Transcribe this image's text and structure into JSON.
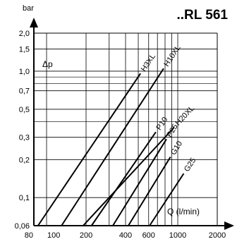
{
  "chart_data": {
    "type": "line",
    "title": "..RL 561",
    "y_unit": "bar",
    "ylabel": "Δp",
    "xlabel": "Q (l/min)",
    "x_scale": "log",
    "y_scale": "log",
    "xlim": [
      80,
      2000
    ],
    "ylim": [
      0.06,
      2.0
    ],
    "x_ticks": [
      {
        "value": 80,
        "label": "80"
      },
      {
        "value": 100,
        "label": "100"
      },
      {
        "value": 200,
        "label": "200"
      },
      {
        "value": 400,
        "label": "400"
      },
      {
        "value": 600,
        "label": "600"
      },
      {
        "value": 1000,
        "label": "1000"
      },
      {
        "value": 2000,
        "label": "2000"
      }
    ],
    "y_ticks": [
      {
        "value": 0.06,
        "label": "0,06"
      },
      {
        "value": 0.1,
        "label": "0,1"
      },
      {
        "value": 0.2,
        "label": "0,2"
      },
      {
        "value": 0.3,
        "label": "0,3"
      },
      {
        "value": 0.5,
        "label": "0,5"
      },
      {
        "value": 0.7,
        "label": "0,7"
      },
      {
        "value": 1.0,
        "label": "1,0"
      },
      {
        "value": 1.5,
        "label": "1,5"
      },
      {
        "value": 2.0,
        "label": "2,0"
      }
    ],
    "grid": true,
    "series": [
      {
        "name": "H3XL",
        "x": [
          86,
          520
        ],
        "y": [
          0.06,
          0.96
        ]
      },
      {
        "name": "H10XL",
        "x": [
          130,
          780
        ],
        "y": [
          0.06,
          1.05
        ]
      },
      {
        "name": "H20XL",
        "x": [
          190,
          940
        ],
        "y": [
          0.06,
          0.36
        ]
      },
      {
        "name": "P10",
        "x": [
          220,
          680
        ],
        "y": [
          0.06,
          0.33
        ]
      },
      {
        "name": "P25",
        "x": [
          320,
          820
        ],
        "y": [
          0.06,
          0.29
        ]
      },
      {
        "name": "G10",
        "x": [
          420,
          880
        ],
        "y": [
          0.06,
          0.21
        ]
      },
      {
        "name": "G25",
        "x": [
          610,
          1110
        ],
        "y": [
          0.06,
          0.155
        ]
      }
    ]
  }
}
